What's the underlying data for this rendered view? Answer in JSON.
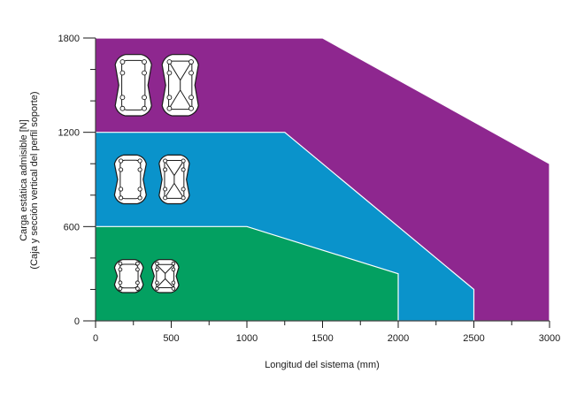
{
  "chart_data": {
    "type": "area",
    "title": "",
    "xlabel": "Longitud del sistema (mm)",
    "ylabel": [
      "Carga estática admisible [N]",
      "(Caja y sección vertical del perfil soporte)"
    ],
    "xlim": [
      0,
      3000
    ],
    "ylim": [
      0,
      1800
    ],
    "x_ticks": [
      0,
      500,
      1000,
      1500,
      2000,
      2500,
      3000
    ],
    "x_tick_labels": [
      "0",
      "500",
      "1000",
      "1500",
      "2000",
      "2500",
      "3000"
    ],
    "y_ticks": [
      0,
      600,
      1200,
      1800
    ],
    "y_tick_labels": [
      "0",
      "600",
      "1200",
      "1800"
    ],
    "y_minor_step": 200,
    "x_minor_step": 250,
    "grid": false,
    "legend": "none",
    "series": [
      {
        "color": "#8e278f",
        "points": [
          [
            0,
            1800
          ],
          [
            1500,
            1800
          ],
          [
            3000,
            1000
          ],
          [
            3000,
            0
          ],
          [
            0,
            0
          ]
        ]
      },
      {
        "color": "#0a93cb",
        "points": [
          [
            0,
            1200
          ],
          [
            1250,
            1200
          ],
          [
            2500,
            200
          ],
          [
            2500,
            0
          ],
          [
            0,
            0
          ]
        ]
      },
      {
        "color": "#03a061",
        "points": [
          [
            0,
            600
          ],
          [
            1000,
            600
          ],
          [
            2000,
            300
          ],
          [
            2000,
            0
          ],
          [
            0,
            0
          ]
        ]
      }
    ],
    "icons": [
      {
        "name": "profile-section-large-a-icon",
        "band": "purple",
        "x": 250,
        "y": 1500,
        "w": 240,
        "h": 390,
        "style": "solid"
      },
      {
        "name": "profile-section-large-b-icon",
        "band": "purple",
        "x": 560,
        "y": 1500,
        "w": 240,
        "h": 390,
        "style": "lattice"
      },
      {
        "name": "profile-section-medium-a-icon",
        "band": "blue",
        "x": 230,
        "y": 900,
        "w": 210,
        "h": 310,
        "style": "solid"
      },
      {
        "name": "profile-section-medium-b-icon",
        "band": "blue",
        "x": 520,
        "y": 900,
        "w": 200,
        "h": 310,
        "style": "lattice"
      },
      {
        "name": "profile-section-small-a-icon",
        "band": "green",
        "x": 220,
        "y": 285,
        "w": 190,
        "h": 210,
        "style": "solid"
      },
      {
        "name": "profile-section-small-b-icon",
        "band": "green",
        "x": 460,
        "y": 285,
        "w": 180,
        "h": 210,
        "style": "lattice"
      }
    ]
  }
}
